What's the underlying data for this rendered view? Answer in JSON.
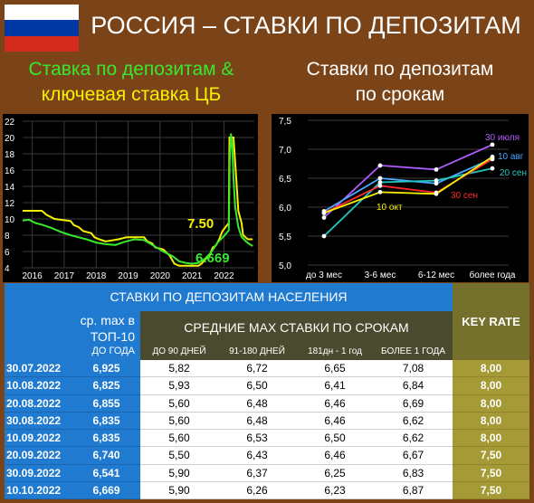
{
  "header": {
    "title": "РОССИЯ – СТАВКИ ПО ДЕПОЗИТАМ",
    "flag_colors": [
      "#ffffff",
      "#0039a6",
      "#d52b1e"
    ]
  },
  "subtitles": {
    "left_line1": "Ставка по депозитам &",
    "left_line2": "ключевая ставка ЦБ",
    "right_line1": "Ставки по депозитам",
    "right_line2": "по срокам"
  },
  "chart_data": [
    {
      "type": "line",
      "ylim": [
        4,
        22
      ],
      "yticks": [
        "4",
        "6",
        "8",
        "10",
        "12",
        "14",
        "16",
        "18",
        "20",
        "22"
      ],
      "xticks": [
        "2016",
        "2017",
        "2018",
        "2019",
        "2020",
        "2021",
        "2022"
      ],
      "xlim": [
        2015.7,
        2022.95
      ],
      "grid": true,
      "annotations": [
        "7.50",
        "6.669"
      ],
      "series": [
        {
          "color": "#f7f000",
          "points": [
            [
              2015.7,
              11.0
            ],
            [
              2016.3,
              11.0
            ],
            [
              2016.45,
              10.5
            ],
            [
              2016.7,
              10.0
            ],
            [
              2017.2,
              9.75
            ],
            [
              2017.3,
              9.25
            ],
            [
              2017.45,
              9.0
            ],
            [
              2017.6,
              8.5
            ],
            [
              2017.85,
              8.25
            ],
            [
              2017.95,
              7.75
            ],
            [
              2018.1,
              7.5
            ],
            [
              2018.3,
              7.25
            ],
            [
              2018.7,
              7.5
            ],
            [
              2018.95,
              7.75
            ],
            [
              2019.5,
              7.75
            ],
            [
              2019.6,
              7.25
            ],
            [
              2019.75,
              7.0
            ],
            [
              2019.85,
              6.5
            ],
            [
              2020.1,
              6.25
            ],
            [
              2020.3,
              5.5
            ],
            [
              2020.45,
              4.5
            ],
            [
              2020.6,
              4.25
            ],
            [
              2021.2,
              4.25
            ],
            [
              2021.3,
              4.5
            ],
            [
              2021.4,
              5.0
            ],
            [
              2021.55,
              5.5
            ],
            [
              2021.65,
              6.5
            ],
            [
              2021.75,
              6.75
            ],
            [
              2021.85,
              7.5
            ],
            [
              2021.95,
              8.5
            ],
            [
              2022.15,
              9.5
            ],
            [
              2022.17,
              20.0
            ],
            [
              2022.3,
              20.0
            ],
            [
              2022.35,
              17.0
            ],
            [
              2022.4,
              14.0
            ],
            [
              2022.45,
              11.0
            ],
            [
              2022.55,
              9.5
            ],
            [
              2022.6,
              8.0
            ],
            [
              2022.75,
              7.5
            ],
            [
              2022.9,
              7.5
            ]
          ]
        },
        {
          "color": "#37e82f",
          "points": [
            [
              2015.7,
              9.8
            ],
            [
              2015.9,
              9.9
            ],
            [
              2016.1,
              9.5
            ],
            [
              2016.3,
              9.3
            ],
            [
              2016.6,
              8.9
            ],
            [
              2016.9,
              8.4
            ],
            [
              2017.2,
              8.0
            ],
            [
              2017.4,
              7.8
            ],
            [
              2017.7,
              7.5
            ],
            [
              2018.0,
              7.1
            ],
            [
              2018.3,
              6.9
            ],
            [
              2018.6,
              6.8
            ],
            [
              2018.9,
              7.2
            ],
            [
              2019.2,
              7.5
            ],
            [
              2019.5,
              7.4
            ],
            [
              2019.8,
              6.7
            ],
            [
              2020.1,
              6.0
            ],
            [
              2020.4,
              5.4
            ],
            [
              2020.6,
              4.8
            ],
            [
              2020.8,
              4.6
            ],
            [
              2021.0,
              4.5
            ],
            [
              2021.2,
              4.6
            ],
            [
              2021.4,
              5.1
            ],
            [
              2021.6,
              5.9
            ],
            [
              2021.8,
              7.1
            ],
            [
              2022.0,
              7.9
            ],
            [
              2022.15,
              8.6
            ],
            [
              2022.18,
              17.0
            ],
            [
              2022.22,
              20.5
            ],
            [
              2022.26,
              19.0
            ],
            [
              2022.3,
              15.0
            ],
            [
              2022.35,
              11.5
            ],
            [
              2022.45,
              9.0
            ],
            [
              2022.55,
              7.8
            ],
            [
              2022.7,
              7.2
            ],
            [
              2022.8,
              6.9
            ],
            [
              2022.9,
              6.669
            ]
          ]
        }
      ]
    },
    {
      "type": "line",
      "categories": [
        "до 3 мес",
        "3-6 мес",
        "6-12 мес",
        "более года"
      ],
      "ylim": [
        5.0,
        7.5
      ],
      "yticks": [
        "5,0",
        "5,5",
        "6,0",
        "6,5",
        "7,0",
        "7,5"
      ],
      "grid": true,
      "series": [
        {
          "name": "30 июля",
          "color": "#b05cff",
          "values": [
            5.82,
            6.72,
            6.65,
            7.08
          ]
        },
        {
          "name": "10 авг",
          "color": "#4aa8ff",
          "values": [
            5.93,
            6.5,
            6.41,
            6.84
          ]
        },
        {
          "name": "20 сен",
          "color": "#22c9c0",
          "values": [
            5.5,
            6.43,
            6.46,
            6.67
          ]
        },
        {
          "name": "30 сен",
          "color": "#ff2b2b",
          "values": [
            5.9,
            6.37,
            6.25,
            6.83
          ]
        },
        {
          "name": "10 окт",
          "color": "#f7f000",
          "values": [
            5.9,
            6.26,
            6.23,
            6.87
          ]
        }
      ]
    },
    {
      "type": "table",
      "title": "СТАВКИ ПО ДЕПОЗИТАМ НАСЕЛЕНИЯ",
      "col0_line1": "ср. max в",
      "col0_line2": "ТОП-10",
      "col0_line3": "ДО ГОДА",
      "group_header": "СРЕДНИЕ MAX СТАВКИ ПО СРОКАМ",
      "key_header": "KEY RATE",
      "columns": [
        "ДО 90 ДНЕЙ",
        "91-180 ДНЕЙ",
        "181дн - 1 год",
        "БОЛЕЕ 1 ГОДА"
      ],
      "rows": [
        {
          "date": "30.07.2022",
          "top10": "6,925",
          "c1": "5,82",
          "c2": "6,72",
          "c3": "6,65",
          "c4": "7,08",
          "key": "8,00"
        },
        {
          "date": "10.08.2022",
          "top10": "6,825",
          "c1": "5,93",
          "c2": "6,50",
          "c3": "6,41",
          "c4": "6,84",
          "key": "8,00"
        },
        {
          "date": "20.08.2022",
          "top10": "6,855",
          "c1": "5,60",
          "c2": "6,48",
          "c3": "6,46",
          "c4": "6,69",
          "key": "8,00"
        },
        {
          "date": "30.08.2022",
          "top10": "6,835",
          "c1": "5,60",
          "c2": "6,48",
          "c3": "6,46",
          "c4": "6,62",
          "key": "8,00"
        },
        {
          "date": "10.09.2022",
          "top10": "6,835",
          "c1": "5,60",
          "c2": "6,53",
          "c3": "6,50",
          "c4": "6,62",
          "key": "8,00"
        },
        {
          "date": "20.09.2022",
          "top10": "6,740",
          "c1": "5,50",
          "c2": "6,43",
          "c3": "6,46",
          "c4": "6,67",
          "key": "7,50"
        },
        {
          "date": "30.09.2022",
          "top10": "6,541",
          "c1": "5,90",
          "c2": "6,37",
          "c3": "6,25",
          "c4": "6,83",
          "key": "7,50"
        },
        {
          "date": "10.10.2022",
          "top10": "6,669",
          "c1": "5,90",
          "c2": "6,26",
          "c3": "6,23",
          "c4": "6,87",
          "key": "7,50"
        }
      ]
    }
  ]
}
